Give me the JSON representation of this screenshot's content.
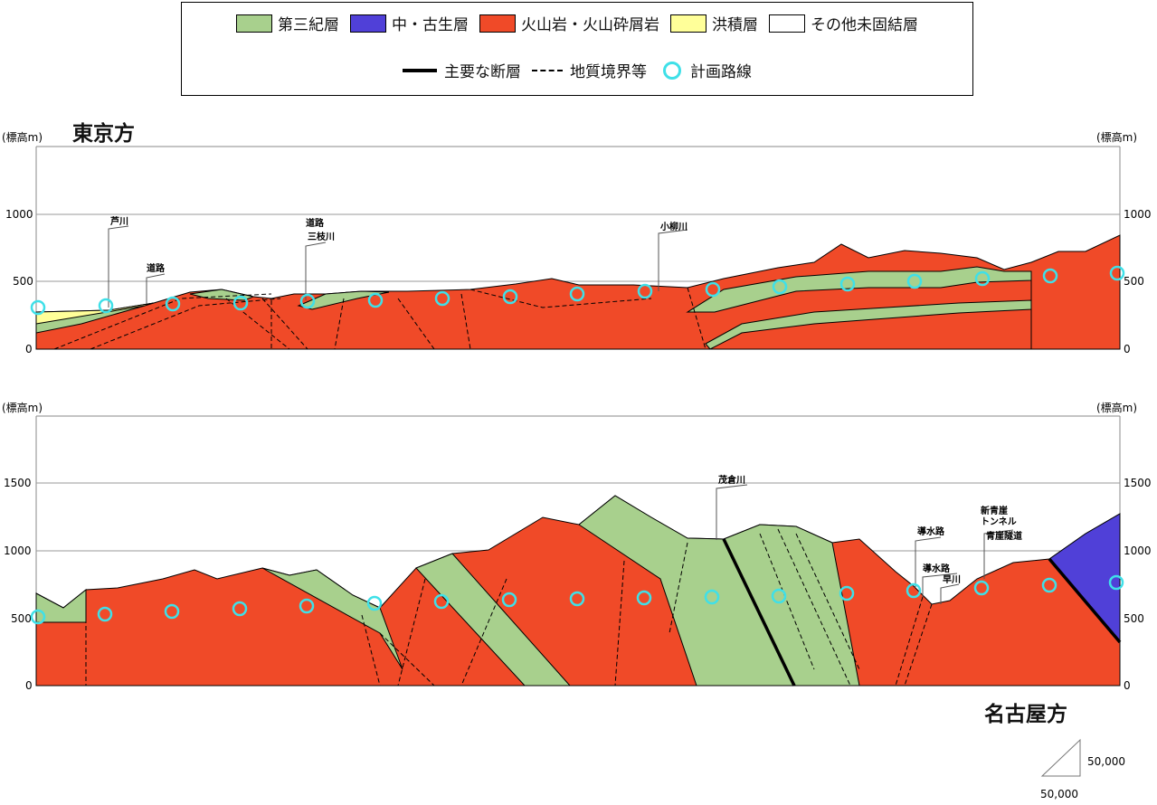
{
  "legend": {
    "items": [
      {
        "label": "第三紀層",
        "color": "#a8d08d"
      },
      {
        "label": "中・古生層",
        "color": "#5040d8"
      },
      {
        "label": "火山岩・火山砕屑岩",
        "color": "#f04a28"
      },
      {
        "label": "洪積層",
        "color": "#ffff99"
      },
      {
        "label": "その他未固結層",
        "color": "#ffffff"
      }
    ],
    "fault_label": "主要な断層",
    "boundary_label": "地質境界等",
    "route_label": "計画路線",
    "route_color": "#3fe0e8"
  },
  "top": {
    "direction": "東京方",
    "axis_label_left": "(標高m)",
    "axis_label_right": "(標高m)",
    "ticks": [
      "1000",
      "500",
      "0"
    ],
    "annotations": [
      {
        "label": "芦川"
      },
      {
        "label": "道路"
      },
      {
        "label": "道路"
      },
      {
        "label": "三枝川"
      },
      {
        "label": "小柳川"
      }
    ]
  },
  "bottom": {
    "direction": "名古屋方",
    "axis_label_left": "(標高m)",
    "axis_label_right": "(標高m)",
    "ticks": [
      "1500",
      "1000",
      "500",
      "0"
    ],
    "annotations": [
      {
        "label": "茂倉川"
      },
      {
        "label": "導水路"
      },
      {
        "label": "導水路"
      },
      {
        "label": "早川"
      },
      {
        "label": "新青崖"
      },
      {
        "label": "トンネル"
      },
      {
        "label": "青崖隧道"
      }
    ]
  },
  "scale": {
    "horizontal": "50,000",
    "vertical": "50,000"
  }
}
